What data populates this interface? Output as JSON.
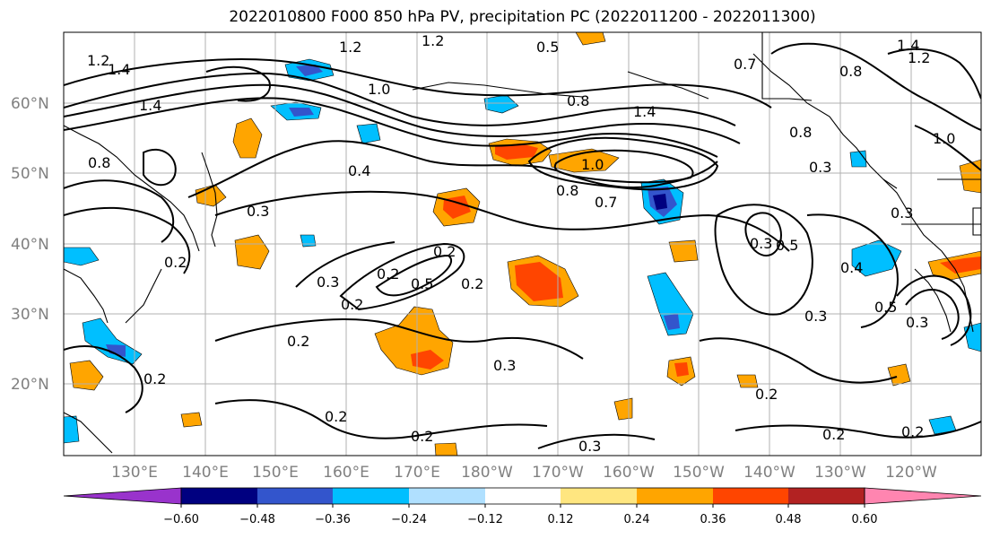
{
  "title": "2022010800 F000 850 hPa PV, precipitation PC (2022011200 - 2022011300)",
  "lat_labels": [
    "60°N",
    "50°N",
    "40°N",
    "30°N",
    "20°N"
  ],
  "lon_labels": [
    "130°E",
    "140°E",
    "150°E",
    "160°E",
    "170°E",
    "180°W",
    "170°W",
    "160°W",
    "150°W",
    "140°W",
    "130°W",
    "120°W"
  ],
  "contour_labels": [
    "1.2",
    "1.2",
    "1.4",
    "1.2",
    "0.5",
    "1.4",
    "1.2",
    "1.4",
    "1.0",
    "0.8",
    "0.7",
    "0.8",
    "1.4",
    "0.8",
    "1.0",
    "0.8",
    "0.4",
    "0.8",
    "0.7",
    "1.0",
    "0.3",
    "0.3",
    "0.3",
    "0.2",
    "0.3",
    "0.2",
    "0.2",
    "0.5",
    "0.3",
    "0.5",
    "0.2",
    "0.2",
    "0.4",
    "0.5",
    "0.3",
    "0.3",
    "0.2",
    "0.3",
    "0.2",
    "0.2",
    "0.2",
    "0.2",
    "0.3",
    "0.2",
    "0.2"
  ],
  "colorbar": {
    "tick_labels": [
      "−0.60",
      "−0.48",
      "−0.36",
      "−0.24",
      "−0.12",
      "0.12",
      "0.24",
      "0.36",
      "0.48",
      "0.60"
    ],
    "colors": [
      "#9933cc",
      "#000080",
      "#3355cc",
      "#00bfff",
      "#b0e0ff",
      "#ffffff",
      "#ffe680",
      "#ffa500",
      "#ff4500",
      "#b22222",
      "#ff85b0"
    ]
  },
  "colors": {
    "coast": "#000000",
    "grid": "#b0b0b0",
    "contour": "#000000",
    "neg_light": "#00bfff",
    "neg_mid": "#3355cc",
    "neg_dark": "#000080",
    "pos_light": "#ffe680",
    "pos_mid": "#ffa500",
    "pos_strong": "#ff4500"
  }
}
